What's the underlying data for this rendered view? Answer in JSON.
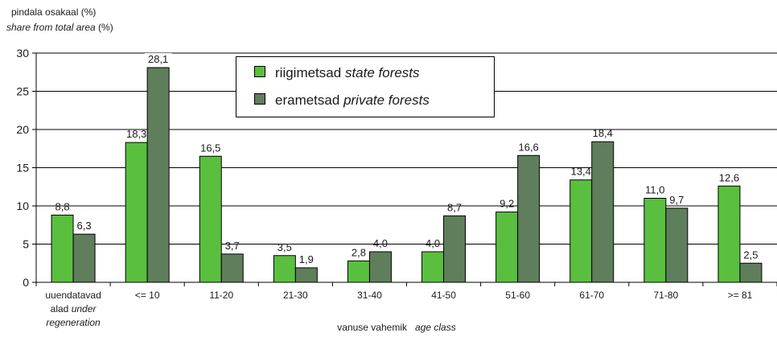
{
  "chart_data": {
    "type": "bar",
    "ylabel_et": "pindala osakaal (%)",
    "ylabel_en": "share from total area",
    "ylabel_unit": " (%)",
    "xlabel_et": "vanuse vahemik",
    "xlabel_en": "age class",
    "ylim": [
      0,
      30
    ],
    "yticks": [
      0,
      5,
      10,
      15,
      20,
      25,
      30
    ],
    "grid": true,
    "legend_position": "top-center",
    "categories": [
      [
        "uuendatavad",
        "alad  under",
        "regeneration"
      ],
      [
        "<= 10"
      ],
      [
        "11-20"
      ],
      [
        "21-30"
      ],
      [
        "31-40"
      ],
      [
        "41-50"
      ],
      [
        "51-60"
      ],
      [
        "61-70"
      ],
      [
        "71-80"
      ],
      [
        ">= 81"
      ]
    ],
    "series": [
      {
        "name_et": "riigimetsad",
        "name_en": "state forests",
        "color": "#5abf3f",
        "values": [
          8.8,
          18.3,
          16.5,
          3.5,
          2.8,
          4.0,
          9.2,
          13.4,
          11.0,
          12.6
        ],
        "labels": [
          "8,8",
          "18,3",
          "16,5",
          "3,5",
          "2,8",
          "4,0",
          "9,2",
          "13,4",
          "11,0",
          "12,6"
        ]
      },
      {
        "name_et": "erametsad",
        "name_en": "private forests",
        "color": "#5f7e5b",
        "values": [
          6.3,
          28.1,
          3.7,
          1.9,
          4.0,
          8.7,
          16.6,
          18.4,
          9.7,
          2.5
        ],
        "labels": [
          "6,3",
          "28,1",
          "3,7",
          "1,9",
          "4,0",
          "8,7",
          "16,6",
          "18,4",
          "9,7",
          "2,5"
        ]
      }
    ]
  }
}
